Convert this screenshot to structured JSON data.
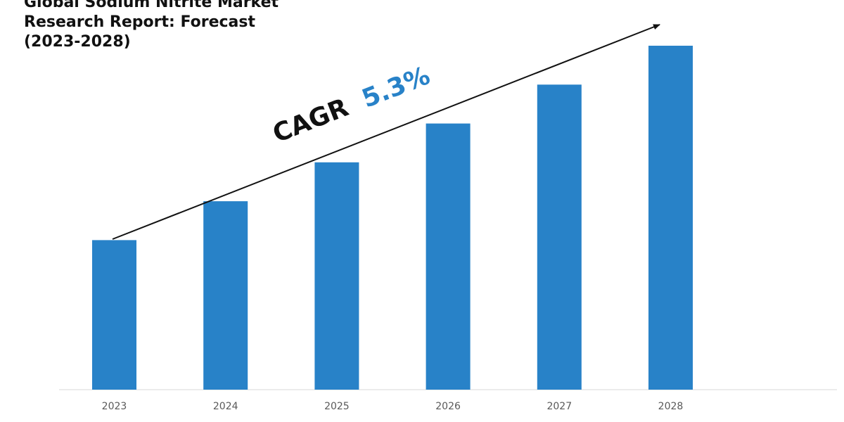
{
  "chart_data": {
    "type": "bar",
    "title": [
      "Global Sodium Nitrite Market",
      "Research Report: Forecast",
      "(2023-2028)"
    ],
    "categories": [
      "2023",
      "2024",
      "2025",
      "2026",
      "2027",
      "2028"
    ],
    "values": [
      100,
      126,
      152,
      178,
      204,
      230
    ],
    "xlabel": "",
    "ylabel": "",
    "ylim": [
      0,
      230
    ],
    "grid": false,
    "legend": "none",
    "annotation": {
      "label": "CAGR",
      "value": "5.3%"
    },
    "colors": {
      "bar": "#2882C8",
      "cagr_value": "#2882C8",
      "text": "#111111",
      "tick": "#595959",
      "axis": "#D9D9D9"
    }
  }
}
